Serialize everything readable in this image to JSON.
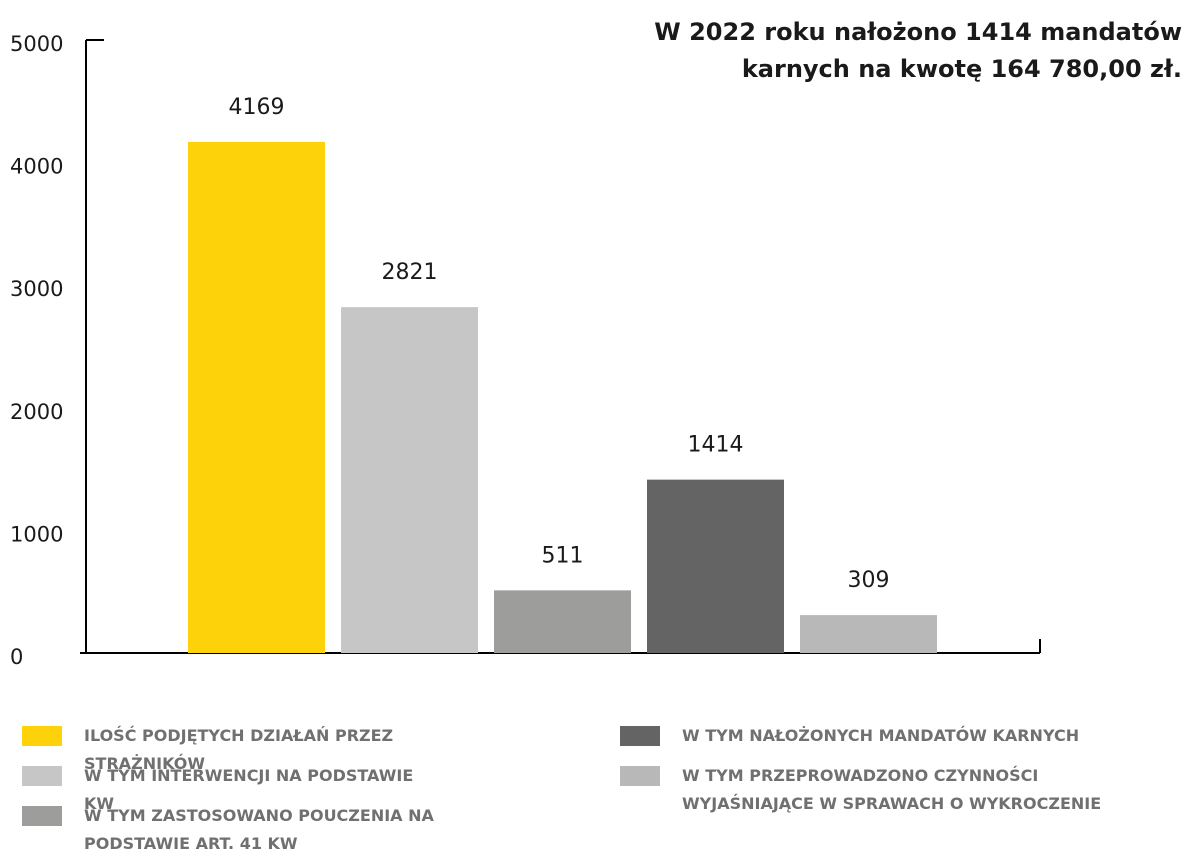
{
  "chart_data": {
    "type": "bar",
    "title": "W 2022 roku nałożono 1414 mandatów karnych na kwotę 164 780,00 zł.",
    "categories": [
      "ILOŚĆ PODJĘTYCH DZIAŁAŃ PRZEZ STRAŻNIKÓW",
      "W TYM INTERWENCJI NA PODSTAWIE KW",
      "W TYM ZASTOSOWANO POUCZENIA NA PODSTAWIE ART. 41 KW",
      "W TYM NAŁOŻONYCH MANDATÓW KARNYCH",
      "W TYM PRZEPROWADZONO CZYNNOŚCI WYJAŚNIAJĄCE W SPRAWACH O WYKROCZENIE"
    ],
    "values": [
      4169,
      2821,
      511,
      1414,
      309
    ],
    "colors": [
      "#fdd20a",
      "#c6c6c6",
      "#9d9d9c",
      "#646464",
      "#b8b8b8"
    ],
    "ylim": [
      0,
      5000
    ],
    "yticks": [
      0,
      1000,
      2000,
      3000,
      4000,
      5000
    ],
    "grid": false
  }
}
